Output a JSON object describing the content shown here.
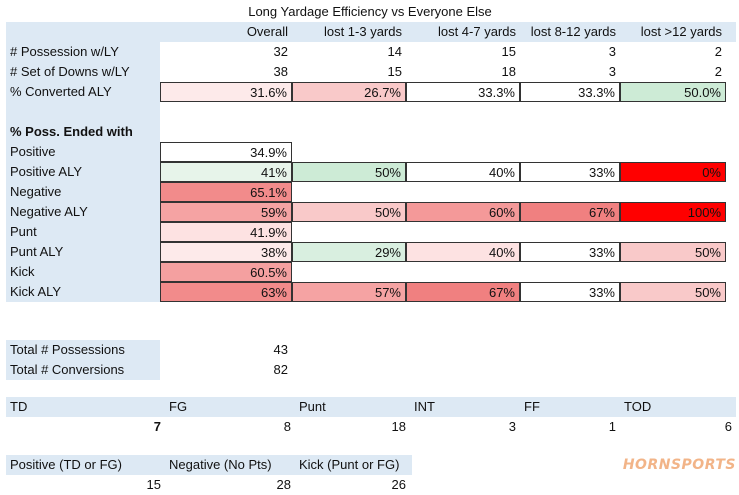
{
  "title": "Long Yardage Efficiency vs Everyone Else",
  "headers": [
    "Overall",
    "lost 1-3 yards",
    "lost 4-7 yards",
    "lost 8-12 yards",
    "lost >12 yards"
  ],
  "top_rows": [
    {
      "label": "# Possession w/LY",
      "values": [
        "32",
        "14",
        "15",
        "3",
        "2"
      ]
    },
    {
      "label": "# Set of Downs w/LY",
      "values": [
        "38",
        "15",
        "18",
        "3",
        "2"
      ]
    },
    {
      "label": "% Converted ALY",
      "values": [
        "31.6%",
        "26.7%",
        "33.3%",
        "33.3%",
        "50.0%"
      ]
    }
  ],
  "section_header": "% Poss. Ended with",
  "section_rows": [
    {
      "label": "Positive",
      "values": [
        "34.9%"
      ]
    },
    {
      "label": "Positive ALY",
      "values": [
        "41%",
        "50%",
        "40%",
        "33%",
        "0%"
      ]
    },
    {
      "label": "Negative",
      "values": [
        "65.1%"
      ]
    },
    {
      "label": "Negative ALY",
      "values": [
        "59%",
        "50%",
        "60%",
        "67%",
        "100%"
      ]
    },
    {
      "label": "Punt",
      "values": [
        "41.9%"
      ]
    },
    {
      "label": "Punt ALY",
      "values": [
        "38%",
        "29%",
        "40%",
        "33%",
        "50%"
      ]
    },
    {
      "label": "Kick",
      "values": [
        "60.5%"
      ]
    },
    {
      "label": "Kick ALY",
      "values": [
        "63%",
        "57%",
        "67%",
        "33%",
        "50%"
      ]
    }
  ],
  "totals": [
    {
      "label": "Total # Possessions",
      "value": "43"
    },
    {
      "label": "Total # Conversions",
      "value": "82"
    }
  ],
  "outcomes": {
    "labels": [
      "TD",
      "FG",
      "Punt",
      "INT",
      "FF",
      "TOD"
    ],
    "values": [
      "7",
      "8",
      "18",
      "3",
      "1",
      "6"
    ]
  },
  "summary": {
    "labels": [
      "Positive (TD or FG)",
      "Negative (No Pts)",
      "Kick (Punt or FG)"
    ],
    "values": [
      "15",
      "28",
      "26"
    ]
  },
  "logo_text": "HORNSPORTS",
  "cell_colors": {
    "top_rows": [
      [
        "#ffffff",
        "#ffffff",
        "#ffffff",
        "#ffffff",
        "#ffffff"
      ],
      [
        "#ffffff",
        "#ffffff",
        "#ffffff",
        "#ffffff",
        "#ffffff"
      ],
      [
        "#fdeaea",
        "#f9c9c9",
        "#ffffff",
        "#ffffff",
        "#cdebd6"
      ]
    ],
    "section_rows": [
      [
        "#ffffff"
      ],
      [
        "#e7f4ea",
        "#cdebd6",
        "#ffffff",
        "#ffffff",
        "#ff0000"
      ],
      [
        "#f28b8b"
      ],
      [
        "#f5a3a3",
        "#f9c9c9",
        "#f49999",
        "#f08080",
        "#ff0000"
      ],
      [
        "#fde2e2"
      ],
      [
        "#fdeaea",
        "#d9efe0",
        "#fde2e2",
        "#ffffff",
        "#f9c9c9"
      ],
      [
        "#f4a0a0"
      ],
      [
        "#f28b8b",
        "#f5a3a3",
        "#f08080",
        "#ffffff",
        "#f9c9c9"
      ]
    ]
  }
}
